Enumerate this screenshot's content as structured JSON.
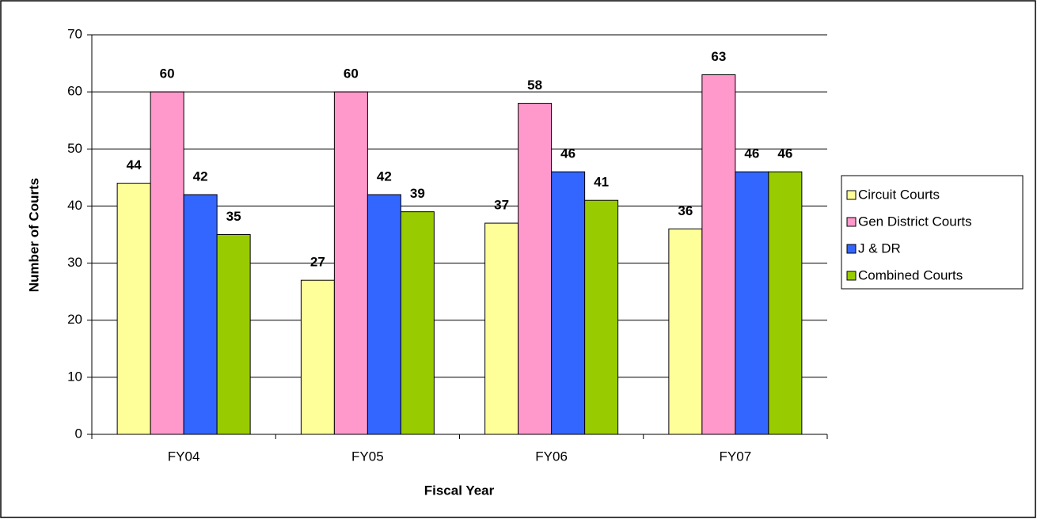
{
  "chart_data": {
    "type": "bar",
    "categories": [
      "FY04",
      "FY05",
      "FY06",
      "FY07"
    ],
    "series": [
      {
        "name": "Circuit Courts",
        "color": "#ffff99",
        "values": [
          44,
          27,
          37,
          36
        ]
      },
      {
        "name": "Gen District Courts",
        "color": "#ff99cc",
        "values": [
          60,
          60,
          58,
          63
        ]
      },
      {
        "name": "J & DR",
        "color": "#3366ff",
        "values": [
          42,
          42,
          46,
          46
        ]
      },
      {
        "name": "Combined Courts",
        "color": "#99cc00",
        "values": [
          35,
          39,
          41,
          46
        ]
      }
    ],
    "x_label": "Fiscal Year",
    "y_label": "Number of Courts",
    "ylim": [
      0,
      70
    ],
    "yticks": [
      0,
      10,
      20,
      30,
      40,
      50,
      60,
      70
    ],
    "grid": true,
    "legend": "right"
  }
}
